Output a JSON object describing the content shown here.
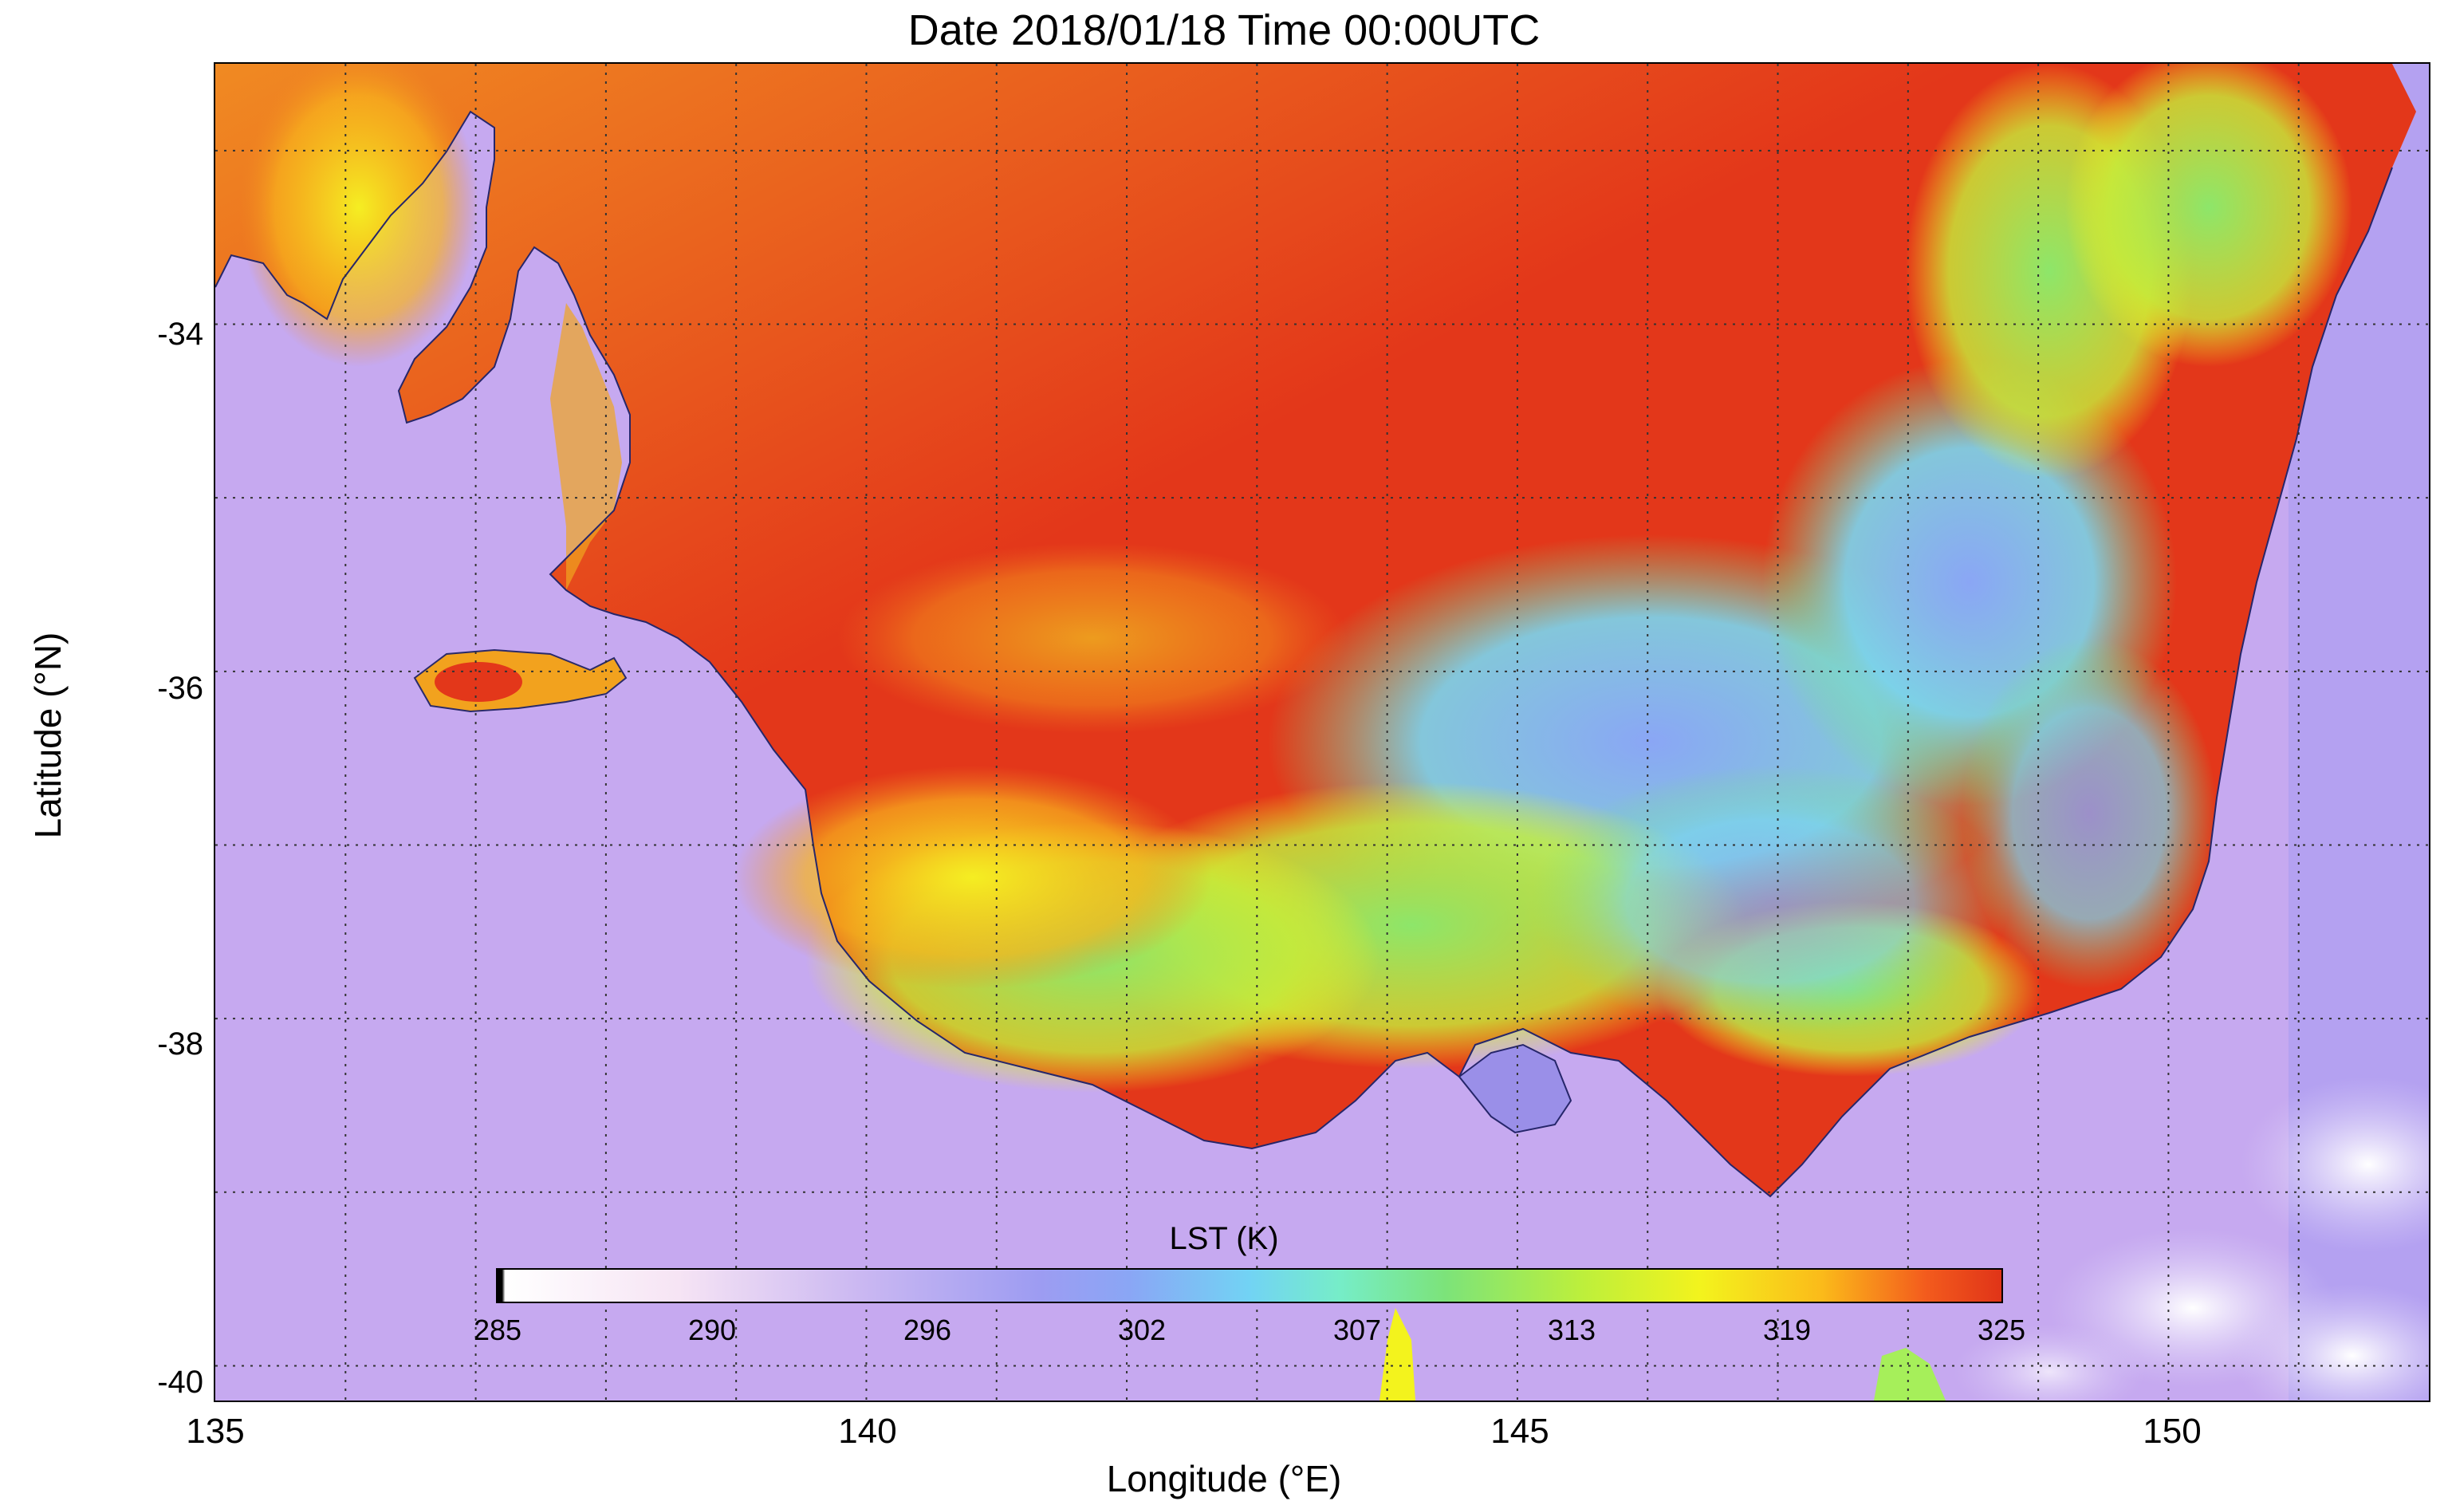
{
  "title": "Date 2018/01/18 Time 00:00UTC",
  "map": {
    "xlabel": "Longitude (°E)",
    "ylabel": "Latitude (°N)",
    "x_ticks": [
      "135",
      "140",
      "145",
      "150"
    ],
    "y_ticks": [
      "-34",
      "-36",
      "-38",
      "-40"
    ],
    "lon_range": [
      135,
      152
    ],
    "lat_range": [
      -32.5,
      -40.2
    ],
    "grid": "dotted, 1 degree",
    "ocean_color": "#c7a8f1",
    "land_hot_color": "#e2331a"
  },
  "colorbar": {
    "title": "LST (K)",
    "ticks": [
      "285",
      "290",
      "296",
      "302",
      "307",
      "313",
      "319",
      "325"
    ],
    "range": [
      285,
      325
    ],
    "colors": [
      "#000000",
      "#ffffff",
      "#cbb8f2",
      "#8aa6f5",
      "#72d3f4",
      "#7ce37a",
      "#f3f31d",
      "#fbbb1a",
      "#e03418"
    ]
  }
}
